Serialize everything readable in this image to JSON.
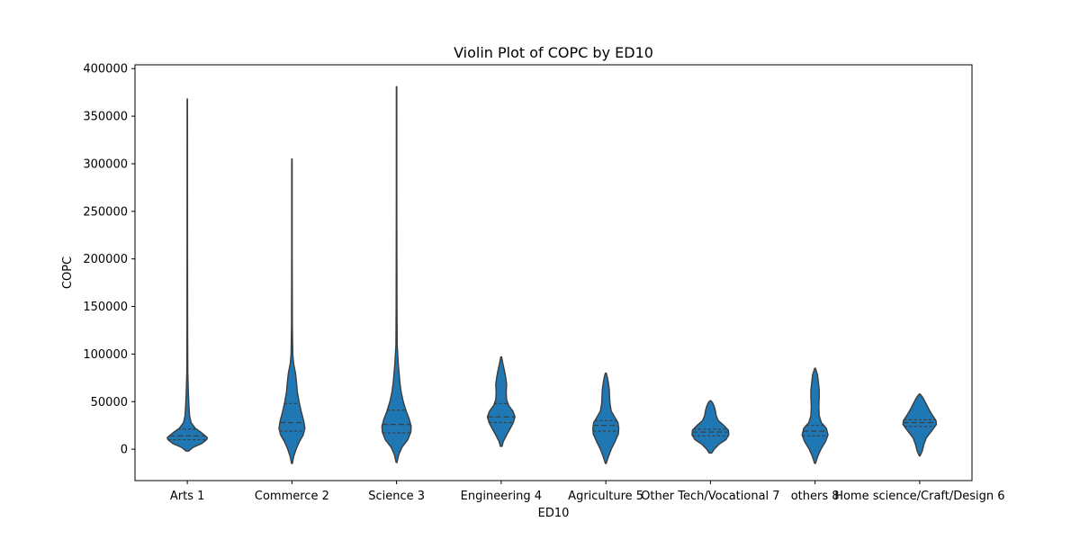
{
  "chart_data": {
    "type": "violin",
    "title": "Violin Plot of COPC by ED10",
    "xlabel": "ED10",
    "ylabel": "COPC",
    "ylim": [
      -33000,
      404000
    ],
    "y_ticks": [
      0,
      50000,
      100000,
      150000,
      200000,
      250000,
      300000,
      350000,
      400000
    ],
    "y_tick_labels": [
      "0",
      "50000",
      "100000",
      "150000",
      "200000",
      "250000",
      "300000",
      "350000",
      "400000"
    ],
    "grid": false,
    "legend": "none",
    "fill_color": "#1f77b4",
    "edge_color": "#3d3d3d",
    "inner": "quartile",
    "categories": [
      {
        "label": "Arts 1",
        "min": -2000,
        "max": 368000,
        "q1": 10000,
        "median": 14000,
        "q3": 21000,
        "profile": [
          [
            -2000,
            0.03
          ],
          [
            2000,
            0.14
          ],
          [
            6000,
            0.35
          ],
          [
            10000,
            0.46
          ],
          [
            12000,
            0.48
          ],
          [
            14000,
            0.43
          ],
          [
            18000,
            0.32
          ],
          [
            22000,
            0.19
          ],
          [
            28000,
            0.09
          ],
          [
            35000,
            0.055
          ],
          [
            45000,
            0.04
          ],
          [
            60000,
            0.025
          ],
          [
            80000,
            0.012
          ],
          [
            120000,
            0.008
          ],
          [
            200000,
            0.006
          ],
          [
            300000,
            0.005
          ],
          [
            368000,
            0.004
          ]
        ]
      },
      {
        "label": "Commerce 2",
        "min": -15000,
        "max": 305000,
        "q1": 19000,
        "median": 28000,
        "q3": 48000,
        "profile": [
          [
            -15000,
            0.01
          ],
          [
            -8000,
            0.04
          ],
          [
            0,
            0.1
          ],
          [
            8000,
            0.18
          ],
          [
            15000,
            0.27
          ],
          [
            22000,
            0.31
          ],
          [
            30000,
            0.28
          ],
          [
            40000,
            0.22
          ],
          [
            50000,
            0.17
          ],
          [
            60000,
            0.13
          ],
          [
            70000,
            0.11
          ],
          [
            80000,
            0.085
          ],
          [
            90000,
            0.04
          ],
          [
            100000,
            0.02
          ],
          [
            130000,
            0.01
          ],
          [
            200000,
            0.006
          ],
          [
            305000,
            0.005
          ]
        ]
      },
      {
        "label": "Science 3",
        "min": -14000,
        "max": 381000,
        "q1": 17000,
        "median": 26000,
        "q3": 41000,
        "profile": [
          [
            -14000,
            0.01
          ],
          [
            -6000,
            0.05
          ],
          [
            2000,
            0.13
          ],
          [
            10000,
            0.27
          ],
          [
            18000,
            0.34
          ],
          [
            24000,
            0.35
          ],
          [
            32000,
            0.3
          ],
          [
            40000,
            0.23
          ],
          [
            50000,
            0.16
          ],
          [
            60000,
            0.11
          ],
          [
            70000,
            0.08
          ],
          [
            80000,
            0.06
          ],
          [
            90000,
            0.04
          ],
          [
            110000,
            0.015
          ],
          [
            150000,
            0.01
          ],
          [
            250000,
            0.006
          ],
          [
            381000,
            0.005
          ]
        ]
      },
      {
        "label": "Engineering 4",
        "min": 3000,
        "max": 97000,
        "q1": 28000,
        "median": 34000,
        "q3": 48000,
        "profile": [
          [
            3000,
            0.02
          ],
          [
            8000,
            0.05
          ],
          [
            15000,
            0.13
          ],
          [
            22000,
            0.22
          ],
          [
            28000,
            0.29
          ],
          [
            34000,
            0.33
          ],
          [
            40000,
            0.28
          ],
          [
            46000,
            0.18
          ],
          [
            52000,
            0.13
          ],
          [
            60000,
            0.12
          ],
          [
            68000,
            0.13
          ],
          [
            75000,
            0.11
          ],
          [
            82000,
            0.08
          ],
          [
            90000,
            0.04
          ],
          [
            97000,
            0.01
          ]
        ]
      },
      {
        "label": "Agriculture 5",
        "min": -15000,
        "max": 80000,
        "q1": 19000,
        "median": 25000,
        "q3": 30000,
        "profile": [
          [
            -15000,
            0.01
          ],
          [
            -8000,
            0.06
          ],
          [
            0,
            0.13
          ],
          [
            8000,
            0.22
          ],
          [
            16000,
            0.3
          ],
          [
            22000,
            0.31
          ],
          [
            28000,
            0.29
          ],
          [
            34000,
            0.21
          ],
          [
            40000,
            0.13
          ],
          [
            48000,
            0.1
          ],
          [
            55000,
            0.09
          ],
          [
            62000,
            0.085
          ],
          [
            70000,
            0.06
          ],
          [
            76000,
            0.035
          ],
          [
            80000,
            0.01
          ]
        ]
      },
      {
        "label": "Other Tech/Vocational 7",
        "min": -4000,
        "max": 51000,
        "q1": 14000,
        "median": 18000,
        "q3": 21000,
        "profile": [
          [
            -4000,
            0.03
          ],
          [
            0,
            0.09
          ],
          [
            5000,
            0.2
          ],
          [
            10000,
            0.37
          ],
          [
            15000,
            0.44
          ],
          [
            20000,
            0.43
          ],
          [
            25000,
            0.32
          ],
          [
            30000,
            0.19
          ],
          [
            35000,
            0.14
          ],
          [
            40000,
            0.12
          ],
          [
            45000,
            0.09
          ],
          [
            49000,
            0.05
          ],
          [
            51000,
            0.01
          ]
        ]
      },
      {
        "label": "others 8",
        "min": -15000,
        "max": 85000,
        "q1": 14000,
        "median": 19000,
        "q3": 25000,
        "profile": [
          [
            -15000,
            0.01
          ],
          [
            -8000,
            0.06
          ],
          [
            0,
            0.14
          ],
          [
            8000,
            0.25
          ],
          [
            15000,
            0.31
          ],
          [
            22000,
            0.27
          ],
          [
            28000,
            0.15
          ],
          [
            35000,
            0.1
          ],
          [
            45000,
            0.09
          ],
          [
            55000,
            0.1
          ],
          [
            62000,
            0.1
          ],
          [
            70000,
            0.08
          ],
          [
            78000,
            0.06
          ],
          [
            85000,
            0.01
          ]
        ]
      },
      {
        "label": "Home science/Craft/Design 6",
        "min": -7000,
        "max": 58000,
        "q1": 24000,
        "median": 28000,
        "q3": 31000,
        "profile": [
          [
            -7000,
            0.01
          ],
          [
            -2000,
            0.06
          ],
          [
            5000,
            0.1
          ],
          [
            12000,
            0.16
          ],
          [
            20000,
            0.3
          ],
          [
            26000,
            0.4
          ],
          [
            30000,
            0.39
          ],
          [
            36000,
            0.3
          ],
          [
            42000,
            0.22
          ],
          [
            48000,
            0.15
          ],
          [
            54000,
            0.08
          ],
          [
            58000,
            0.01
          ]
        ]
      }
    ]
  }
}
